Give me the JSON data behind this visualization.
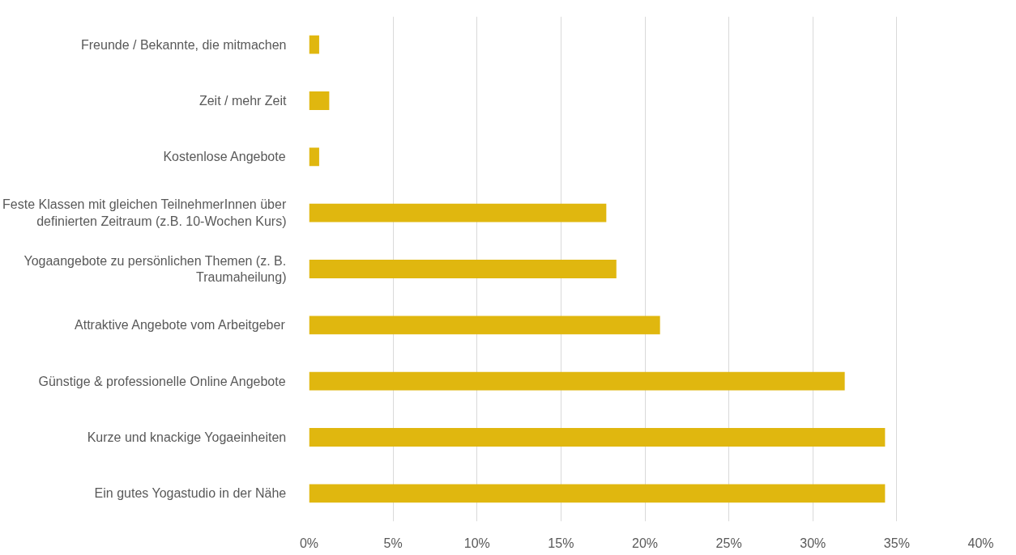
{
  "chart_data": {
    "type": "bar",
    "orientation": "horizontal",
    "categories": [
      "Freunde / Bekannte, die mitmachen",
      "Zeit / mehr Zeit",
      "Kostenlose Angebote",
      "Feste Klassen mit gleichen TeilnehmerInnen über definierten Zeitraum (z.B. 10-Wochen Kurs)",
      "Yogaangebote zu persönlichen Themen (z. B. Traumaheilung)",
      "Attraktive Angebote vom Arbeitgeber",
      "Günstige & professionelle Online Angebote",
      "Kurze und knackige Yogaeinheiten",
      "Ein gutes Yogastudio in der Nähe"
    ],
    "values": [
      0.6,
      1.2,
      0.6,
      17.7,
      18.3,
      20.9,
      31.9,
      34.3,
      34.3
    ],
    "color": "#e0b70f",
    "xlim": [
      0,
      40
    ],
    "xticks": [
      {
        "value": 0,
        "label": "0%"
      },
      {
        "value": 5,
        "label": "5%"
      },
      {
        "value": 10,
        "label": "10%"
      },
      {
        "value": 15,
        "label": "15%"
      },
      {
        "value": 20,
        "label": "20%"
      },
      {
        "value": 25,
        "label": "25%"
      },
      {
        "value": 30,
        "label": "30%"
      },
      {
        "value": 35,
        "label": "35%"
      },
      {
        "value": 40,
        "label": "40%"
      }
    ],
    "grid": "x"
  }
}
